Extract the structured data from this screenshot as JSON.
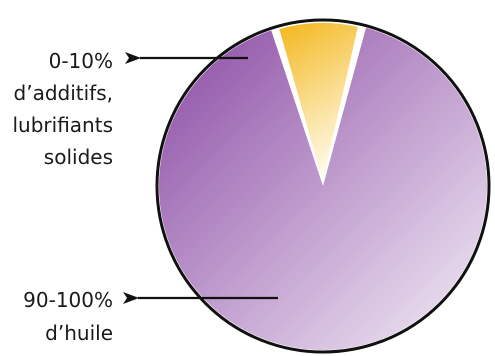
{
  "chart_data": {
    "type": "pie",
    "title": "",
    "slices": [
      {
        "label_lines": [
          "90-100%",
          "d’huile"
        ],
        "range_pct": [
          90,
          100
        ],
        "value": 92,
        "color_start": "#8a4aa4",
        "color_end": "#f4eef7"
      },
      {
        "label_lines": [
          "0-10%",
          "d’additifs,",
          "lubrifiants",
          "solides"
        ],
        "range_pct": [
          0,
          10
        ],
        "value": 8,
        "color_start": "#f3b71c",
        "color_end": "#fff9e6",
        "exploded": true
      }
    ],
    "legend": "none",
    "annotations": "arrows pointing from labels to slices on the left"
  },
  "colors": {
    "outline": "#111111",
    "arrow": "#111111",
    "text": "#1a1a1a"
  }
}
